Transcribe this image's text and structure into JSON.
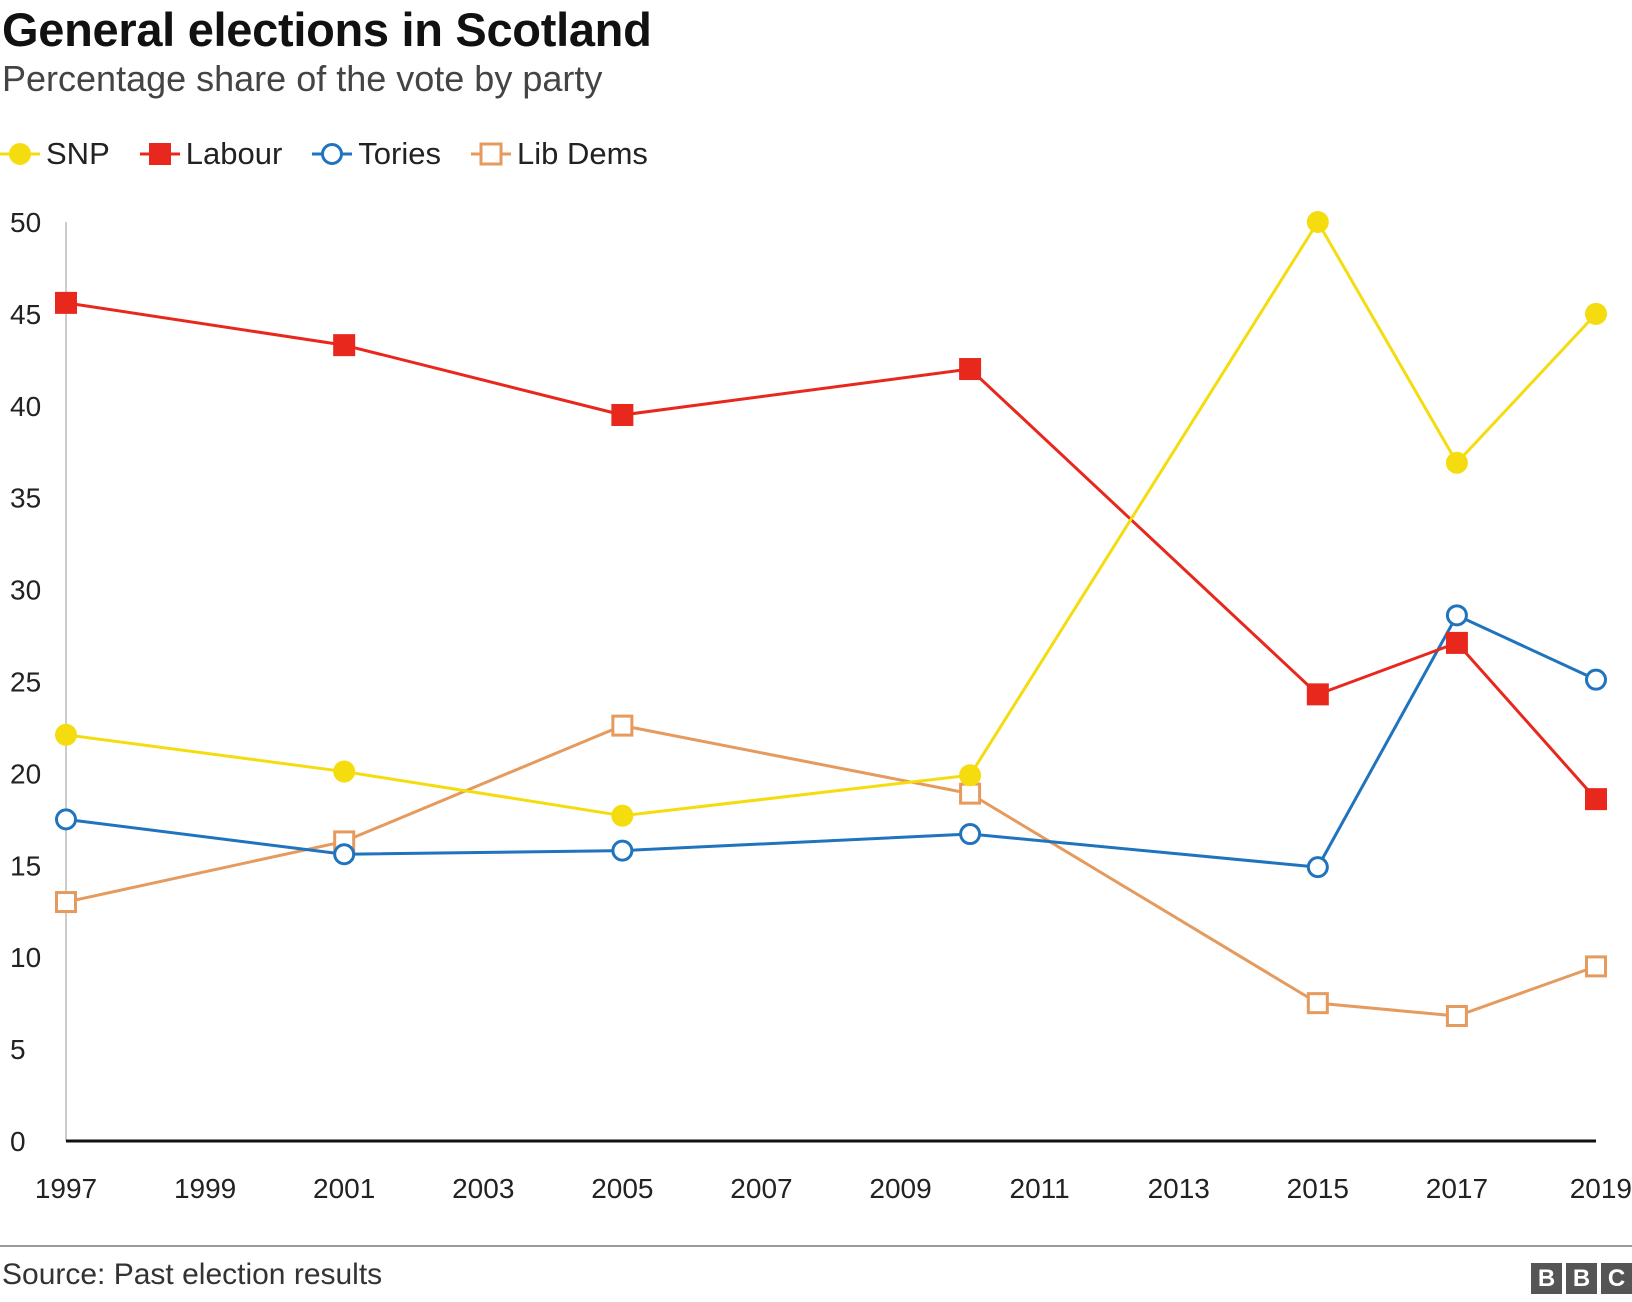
{
  "chart_data": {
    "type": "line",
    "title": "General elections in Scotland",
    "subtitle": "Percentage share of the vote by party",
    "source": "Source: Past election results",
    "branding": "BBC",
    "x_ticks": [
      "1997",
      "1999",
      "2001",
      "2003",
      "2005",
      "2007",
      "2009",
      "2011",
      "2013",
      "2015",
      "2017",
      "2019"
    ],
    "y_ticks": [
      "0",
      "5",
      "10",
      "15",
      "20",
      "25",
      "30",
      "35",
      "40",
      "45",
      "50"
    ],
    "xlim": [
      1997,
      2019
    ],
    "ylim": [
      0,
      50
    ],
    "x": [
      1997,
      2001,
      2005,
      2010,
      2015,
      2017,
      2019
    ],
    "series": [
      {
        "name": "SNP",
        "color": "#f5dc0f",
        "marker": "filled-circle",
        "values": [
          22.1,
          20.1,
          17.7,
          19.9,
          50.0,
          36.9,
          45.0
        ]
      },
      {
        "name": "Labour",
        "color": "#e8281c",
        "marker": "filled-square",
        "values": [
          45.6,
          43.3,
          39.5,
          42.0,
          24.3,
          27.1,
          18.6
        ]
      },
      {
        "name": "Tories",
        "color": "#1f74bd",
        "marker": "open-circle",
        "values": [
          17.5,
          15.6,
          15.8,
          16.7,
          14.9,
          28.6,
          25.1
        ]
      },
      {
        "name": "Lib Dems",
        "color": "#e59a5e",
        "marker": "open-square",
        "values": [
          13.0,
          16.3,
          22.6,
          18.9,
          7.5,
          6.8,
          9.5
        ]
      }
    ]
  }
}
